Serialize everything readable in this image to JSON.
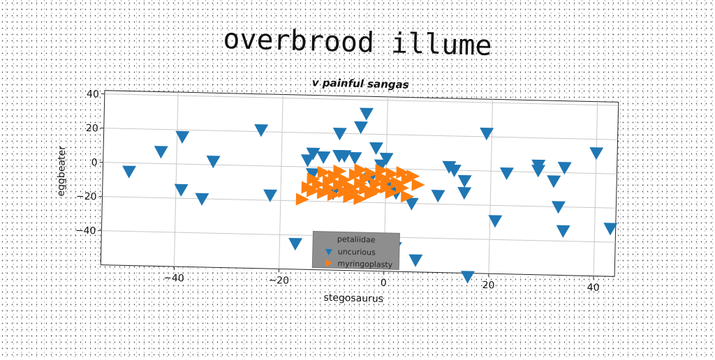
{
  "page_title": "overbrood illume",
  "chart_data": {
    "type": "scatter",
    "title": "v painful sangas",
    "xlabel": "stegosaurus",
    "ylabel": "eggbeater",
    "xlim": [
      -54,
      44
    ],
    "ylim": [
      -60,
      42
    ],
    "xticks": [
      -40,
      -20,
      0,
      20,
      40
    ],
    "yticks": [
      -40,
      -20,
      0,
      20,
      40
    ],
    "grid": true,
    "legend": {
      "title": "petaliidae",
      "placement": "bottom-center"
    },
    "series": [
      {
        "name": "uncurious",
        "marker": "triangle-down",
        "color": "#1f77b4",
        "points": [
          [
            -49,
            -5
          ],
          [
            -43,
            7
          ],
          [
            -39,
            16
          ],
          [
            -39,
            -15
          ],
          [
            -35,
            -20
          ],
          [
            -33,
            2
          ],
          [
            -24,
            21
          ],
          [
            -22,
            -17
          ],
          [
            -17,
            -45
          ],
          [
            -15,
            4
          ],
          [
            -14,
            8
          ],
          [
            -14,
            -4
          ],
          [
            -12,
            6
          ],
          [
            -10,
            -15
          ],
          [
            -9,
            20
          ],
          [
            -9,
            7
          ],
          [
            -8,
            7
          ],
          [
            -6,
            6
          ],
          [
            -5,
            24
          ],
          [
            -4,
            32
          ],
          [
            -3,
            -6
          ],
          [
            -2,
            12
          ],
          [
            -1,
            2
          ],
          [
            0,
            6
          ],
          [
            1,
            -11
          ],
          [
            2,
            -14
          ],
          [
            2,
            -46
          ],
          [
            5,
            -20
          ],
          [
            6,
            -53
          ],
          [
            10,
            -15
          ],
          [
            12,
            2
          ],
          [
            13,
            0
          ],
          [
            15,
            -6
          ],
          [
            15,
            -13
          ],
          [
            16,
            -62
          ],
          [
            19,
            22
          ],
          [
            21,
            -29
          ],
          [
            23,
            -1
          ],
          [
            29,
            4
          ],
          [
            29,
            1
          ],
          [
            32,
            -5
          ],
          [
            33,
            -20
          ],
          [
            34,
            3
          ],
          [
            34,
            -34
          ],
          [
            40,
            12
          ],
          [
            43,
            -32
          ]
        ]
      },
      {
        "name": "myringoplasty",
        "marker": "triangle-right",
        "color": "#ff7f0e",
        "points": [
          [
            -16,
            -19
          ],
          [
            -15,
            -12
          ],
          [
            -14,
            -14
          ],
          [
            -14,
            -7
          ],
          [
            -13,
            -10
          ],
          [
            -12,
            -3
          ],
          [
            -12,
            -15
          ],
          [
            -11,
            -8
          ],
          [
            -11,
            -12
          ],
          [
            -10,
            -5
          ],
          [
            -10,
            -16
          ],
          [
            -9,
            -10
          ],
          [
            -9,
            -2
          ],
          [
            -8,
            -14
          ],
          [
            -8,
            -7
          ],
          [
            -7,
            -17
          ],
          [
            -7,
            -11
          ],
          [
            -6,
            -4
          ],
          [
            -6,
            -14
          ],
          [
            -5,
            -9
          ],
          [
            -5,
            -18
          ],
          [
            -5,
            -1
          ],
          [
            -4,
            -12
          ],
          [
            -4,
            -6
          ],
          [
            -3,
            -15
          ],
          [
            -3,
            -3
          ],
          [
            -2,
            -9
          ],
          [
            -2,
            -13
          ],
          [
            -1,
            -5
          ],
          [
            -1,
            -1
          ],
          [
            0,
            -11
          ],
          [
            0,
            -7
          ],
          [
            1,
            -3
          ],
          [
            1,
            -14
          ],
          [
            2,
            -8
          ],
          [
            3,
            -2
          ],
          [
            3,
            -11
          ],
          [
            4,
            -6
          ],
          [
            4,
            -16
          ],
          [
            5,
            -4
          ],
          [
            6,
            -9
          ]
        ]
      }
    ]
  }
}
